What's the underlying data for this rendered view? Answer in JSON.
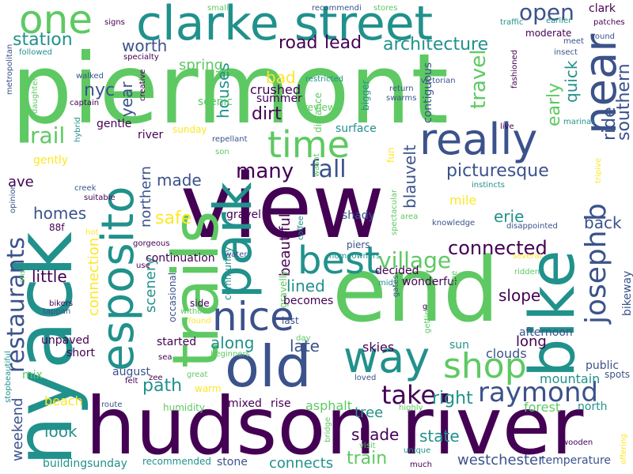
{
  "palette": [
    "#440154",
    "#3b528b",
    "#21918c",
    "#5ec962",
    "#fde725"
  ],
  "words": [
    {
      "text": "piermont",
      "color": "#5ec962"
    },
    {
      "text": "hudson river",
      "color": "#440154"
    },
    {
      "text": "view",
      "color": "#440154"
    },
    {
      "text": "end",
      "color": "#5ec962"
    },
    {
      "text": "nyack",
      "color": "#21918c"
    },
    {
      "text": "clarke street",
      "color": "#21918c"
    },
    {
      "text": "trails",
      "color": "#5ec962"
    },
    {
      "text": "bike",
      "color": "#21918c"
    },
    {
      "text": "old",
      "color": "#3b528b"
    },
    {
      "text": "really",
      "color": "#3b528b"
    },
    {
      "text": "park",
      "color": "#21918c"
    },
    {
      "text": "esposito",
      "color": "#21918c"
    },
    {
      "text": "one",
      "color": "#5ec962"
    },
    {
      "text": "near",
      "color": "#3b528b"
    },
    {
      "text": "way",
      "color": "#21918c"
    },
    {
      "text": "nice",
      "color": "#3b528b"
    },
    {
      "text": "best",
      "color": "#21918c"
    },
    {
      "text": "time",
      "color": "#5ec962"
    },
    {
      "text": "shop",
      "color": "#5ec962"
    },
    {
      "text": "joseph b",
      "color": "#3b528b"
    },
    {
      "text": "raymond",
      "color": "#3b528b"
    },
    {
      "text": "restaurants",
      "color": "#3b528b"
    },
    {
      "text": "village",
      "color": "#5ec962"
    },
    {
      "text": "open",
      "color": "#3b528b"
    },
    {
      "text": "many",
      "color": "#440154"
    },
    {
      "text": "fall",
      "color": "#3b528b"
    },
    {
      "text": "take",
      "color": "#440154"
    },
    {
      "text": "connected",
      "color": "#440154"
    },
    {
      "text": "architecture",
      "color": "#21918c"
    },
    {
      "text": "road",
      "color": "#440154"
    },
    {
      "text": "lead",
      "color": "#440154"
    },
    {
      "text": "station",
      "color": "#21918c"
    },
    {
      "text": "worth",
      "color": "#3b528b"
    },
    {
      "text": "rail",
      "color": "#5ec962"
    },
    {
      "text": "travel",
      "color": "#5ec962"
    },
    {
      "text": "southern",
      "color": "#3b528b"
    },
    {
      "text": "ride",
      "color": "#3b528b"
    },
    {
      "text": "early",
      "color": "#5ec962"
    },
    {
      "text": "quick",
      "color": "#21918c"
    },
    {
      "text": "picturesque",
      "color": "#3b528b"
    },
    {
      "text": "blauvelt",
      "color": "#3b528b"
    },
    {
      "text": "nyc",
      "color": "#3b528b"
    },
    {
      "text": "year",
      "color": "#3b528b"
    },
    {
      "text": "houses",
      "color": "#21918c"
    },
    {
      "text": "spring",
      "color": "#5ec962"
    },
    {
      "text": "bad",
      "color": "#fde725"
    },
    {
      "text": "dirt",
      "color": "#440154"
    },
    {
      "text": "crushed",
      "color": "#440154"
    },
    {
      "text": "summer",
      "color": "#440154"
    },
    {
      "text": "made",
      "color": "#3b528b"
    },
    {
      "text": "northern",
      "color": "#3b528b"
    },
    {
      "text": "safe",
      "color": "#fde725"
    },
    {
      "text": "homes",
      "color": "#3b528b"
    },
    {
      "text": "ave",
      "color": "#440154"
    },
    {
      "text": "little",
      "color": "#440154"
    },
    {
      "text": "beautiful",
      "color": "#440154"
    },
    {
      "text": "lined",
      "color": "#21918c"
    },
    {
      "text": "path",
      "color": "#21918c"
    },
    {
      "text": "scenery",
      "color": "#21918c"
    },
    {
      "text": "connection",
      "color": "#fde725"
    },
    {
      "text": "along",
      "color": "#21918c"
    },
    {
      "text": "late",
      "color": "#3b528b"
    },
    {
      "text": "slope",
      "color": "#440154"
    },
    {
      "text": "back",
      "color": "#3b528b"
    },
    {
      "text": "erie",
      "color": "#21918c"
    },
    {
      "text": "mile",
      "color": "#fde725"
    },
    {
      "text": "long",
      "color": "#440154"
    },
    {
      "text": "right",
      "color": "#21918c"
    },
    {
      "text": "tree",
      "color": "#21918c"
    },
    {
      "text": "shade",
      "color": "#440154"
    },
    {
      "text": "state",
      "color": "#21918c"
    },
    {
      "text": "train",
      "color": "#5ec962"
    },
    {
      "text": "westchester",
      "color": "#3b528b"
    },
    {
      "text": "mountain",
      "color": "#21918c"
    },
    {
      "text": "look",
      "color": "#21918c"
    },
    {
      "text": "weekend",
      "color": "#3b528b"
    },
    {
      "text": "beach",
      "color": "#fde725"
    },
    {
      "text": "connects",
      "color": "#21918c"
    },
    {
      "text": "mixed",
      "color": "#440154"
    },
    {
      "text": "rise",
      "color": "#440154"
    },
    {
      "text": "asphalt",
      "color": "#5ec962"
    },
    {
      "text": "forest",
      "color": "#5ec962"
    },
    {
      "text": "north",
      "color": "#21918c"
    },
    {
      "text": "temperature",
      "color": "#3b528b"
    },
    {
      "text": "buildingsunday",
      "color": "#21918c"
    },
    {
      "text": "recommended",
      "color": "#21918c"
    },
    {
      "text": "stone",
      "color": "#3b528b"
    },
    {
      "text": "continuation",
      "color": "#440154"
    },
    {
      "text": "community",
      "color": "#21918c"
    },
    {
      "text": "gravel",
      "color": "#440154"
    },
    {
      "text": "gravelly",
      "color": "#5ec962"
    },
    {
      "text": "shady",
      "color": "#3b528b"
    },
    {
      "text": "piers",
      "color": "#3b528b"
    },
    {
      "text": "decided",
      "color": "#440154"
    },
    {
      "text": "wonderful",
      "color": "#440154"
    },
    {
      "text": "skies",
      "color": "#440154"
    },
    {
      "text": "sun",
      "color": "#21918c"
    },
    {
      "text": "clouds",
      "color": "#3b528b"
    },
    {
      "text": "afternoon",
      "color": "#3b528b"
    },
    {
      "text": "bikeway",
      "color": "#3b528b"
    },
    {
      "text": "public",
      "color": "#3b528b"
    },
    {
      "text": "spots",
      "color": "#3b528b"
    },
    {
      "text": "started",
      "color": "#440154"
    },
    {
      "text": "side",
      "color": "#440154"
    },
    {
      "text": "occasional",
      "color": "#3b528b"
    },
    {
      "text": "becomes",
      "color": "#440154"
    },
    {
      "text": "last",
      "color": "#3b528b"
    },
    {
      "text": "unpaved",
      "color": "#440154"
    },
    {
      "text": "short",
      "color": "#440154"
    },
    {
      "text": "august",
      "color": "#3b528b"
    },
    {
      "text": "mix",
      "color": "#5ec962"
    },
    {
      "text": "gentle",
      "color": "#440154"
    },
    {
      "text": "gently",
      "color": "#fde725"
    },
    {
      "text": "river",
      "color": "#440154"
    },
    {
      "text": "scenic",
      "color": "#5ec962"
    },
    {
      "text": "sunday",
      "color": "#fde725"
    },
    {
      "text": "surface",
      "color": "#21918c"
    },
    {
      "text": "distance",
      "color": "#5ec962"
    },
    {
      "text": "bigger",
      "color": "#21918c"
    },
    {
      "text": "contiguous",
      "color": "#3b528b"
    },
    {
      "text": "moderate",
      "color": "#440154"
    },
    {
      "text": "clark",
      "color": "#440154"
    },
    {
      "text": "review",
      "color": "#5ec962"
    },
    {
      "text": "fun",
      "color": "#fde725"
    },
    {
      "text": "humidity",
      "color": "#5ec962"
    },
    {
      "text": "warm",
      "color": "#fde725"
    },
    {
      "text": "88f",
      "color": "#440154"
    },
    {
      "text": "bikers",
      "color": "#440154"
    },
    {
      "text": "tappan",
      "color": "#3b528b"
    },
    {
      "text": "gorgeous",
      "color": "#440154"
    },
    {
      "text": "water",
      "color": "#3b528b"
    },
    {
      "text": "creek",
      "color": "#3b528b"
    },
    {
      "text": "suitable",
      "color": "#440154"
    },
    {
      "text": "repellant",
      "color": "#3b528b"
    },
    {
      "text": "son",
      "color": "#5ec962"
    },
    {
      "text": "coffee",
      "color": "#21918c"
    },
    {
      "text": "homeowners",
      "color": "#21918c"
    },
    {
      "text": "knowledge",
      "color": "#3b528b"
    },
    {
      "text": "disappointed",
      "color": "#3b528b"
    },
    {
      "text": "instincts",
      "color": "#21918c"
    },
    {
      "text": "area",
      "color": "#5ec962"
    },
    {
      "text": "spectacular",
      "color": "#5ec962"
    },
    {
      "text": "several",
      "color": "#fde725"
    },
    {
      "text": "ridden",
      "color": "#5ec962"
    },
    {
      "text": "mid",
      "color": "#21918c"
    },
    {
      "text": "gates",
      "color": "#3b528b"
    },
    {
      "text": "advantage",
      "color": "#5ec962"
    },
    {
      "text": "getting",
      "color": "#5ec962"
    },
    {
      "text": "loved",
      "color": "#3b528b"
    },
    {
      "text": "highly",
      "color": "#5ec962"
    },
    {
      "text": "unique",
      "color": "#21918c"
    },
    {
      "text": "visit",
      "color": "#5ec962"
    },
    {
      "text": "bridge",
      "color": "#5ec962"
    },
    {
      "text": "much",
      "color": "#440154"
    },
    {
      "text": "wooden",
      "color": "#440154"
    },
    {
      "text": "offering",
      "color": "#fde725"
    },
    {
      "text": "route",
      "color": "#3b528b"
    },
    {
      "text": "beginners",
      "color": "#5ec962"
    },
    {
      "text": "great",
      "color": "#5ec962"
    },
    {
      "text": "felt",
      "color": "#440154"
    },
    {
      "text": "zee",
      "color": "#440154"
    },
    {
      "text": "day",
      "color": "#5ec962"
    },
    {
      "text": "found",
      "color": "#fde725"
    },
    {
      "text": "without",
      "color": "#5ec962"
    },
    {
      "text": "sea",
      "color": "#440154"
    },
    {
      "text": "hot",
      "color": "#fde725"
    },
    {
      "text": "use",
      "color": "#440154"
    },
    {
      "text": "opinion",
      "color": "#3b528b"
    },
    {
      "text": "stopbeautiful",
      "color": "#21918c"
    },
    {
      "text": "metropolitan",
      "color": "#3b528b"
    },
    {
      "text": "daughter",
      "color": "#5ec962"
    },
    {
      "text": "followed",
      "color": "#21918c"
    },
    {
      "text": "walked",
      "color": "#3b528b"
    },
    {
      "text": "captain",
      "color": "#440154"
    },
    {
      "text": "creative",
      "color": "#440154"
    },
    {
      "text": "specialty",
      "color": "#440154"
    },
    {
      "text": "hybrid",
      "color": "#21918c"
    },
    {
      "text": "stores",
      "color": "#5ec962"
    },
    {
      "text": "signs",
      "color": "#440154"
    },
    {
      "text": "small",
      "color": "#5ec962"
    },
    {
      "text": "recommendi",
      "color": "#3b528b"
    },
    {
      "text": "traffic",
      "color": "#21918c"
    },
    {
      "text": "earlier",
      "color": "#21918c"
    },
    {
      "text": "patches",
      "color": "#440154"
    },
    {
      "text": "round",
      "color": "#3b528b"
    },
    {
      "text": "meet",
      "color": "#3b528b"
    },
    {
      "text": "insect",
      "color": "#3b528b"
    },
    {
      "text": "fashioned",
      "color": "#440154"
    },
    {
      "text": "restricted",
      "color": "#21918c"
    },
    {
      "text": "return",
      "color": "#3b528b"
    },
    {
      "text": "swarms",
      "color": "#3b528b"
    },
    {
      "text": "victorian",
      "color": "#3b528b"
    },
    {
      "text": "live",
      "color": "#440154"
    },
    {
      "text": "marinas",
      "color": "#21918c"
    },
    {
      "text": "tripive",
      "color": "#fde725"
    },
    {
      "text": "wasnt",
      "color": "#5ec962"
    },
    {
      "text": "sns",
      "color": "#5ec962"
    },
    {
      "text": "g",
      "color": "#440154"
    }
  ]
}
